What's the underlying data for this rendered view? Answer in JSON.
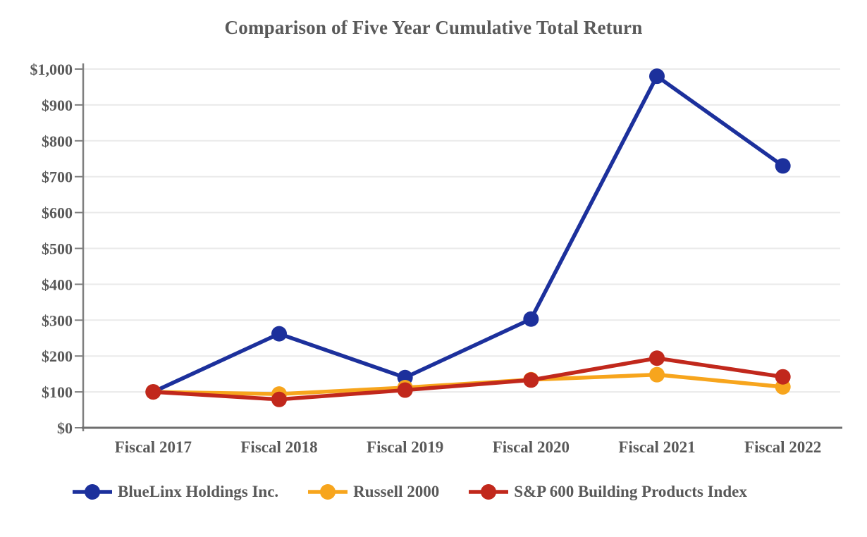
{
  "chart_data": {
    "type": "line",
    "title": "Comparison of Five Year Cumulative Total Return",
    "categories": [
      "Fiscal 2017",
      "Fiscal 2018",
      "Fiscal 2019",
      "Fiscal 2020",
      "Fiscal 2021",
      "Fiscal 2022"
    ],
    "series": [
      {
        "name": "BlueLinx Holdings Inc.",
        "color": "#1c309c",
        "values": [
          100,
          262,
          140,
          303,
          980,
          730
        ]
      },
      {
        "name": "Russell 2000",
        "color": "#f7a51d",
        "values": [
          100,
          94,
          112,
          134,
          148,
          114
        ]
      },
      {
        "name": "S&P 600 Building Products Index",
        "color": "#c1281c",
        "values": [
          100,
          79,
          105,
          133,
          194,
          142
        ]
      }
    ],
    "ylim": [
      0,
      1000
    ],
    "y_tick_step": 100,
    "y_tick_labels": [
      "$0",
      "$100",
      "$200",
      "$300",
      "$400",
      "$500",
      "$600",
      "$700",
      "$800",
      "$900",
      "$1,000"
    ],
    "grid": true,
    "legend_position": "bottom"
  },
  "style": {
    "text_color": "#595959",
    "grid_color": "#eaeaea",
    "axis_color": "#7f7f7f",
    "baseline_color": "#6e6e6e",
    "background": "#ffffff"
  }
}
